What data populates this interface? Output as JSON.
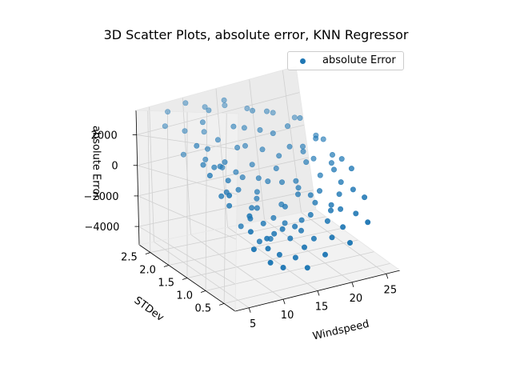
{
  "chart_data": {
    "type": "scatter",
    "title": "3D Scatter Plots, absolute error, KNN Regressor",
    "xlabel": "Windspeed",
    "ylabel": "STDev",
    "zlabel": "absolute Error",
    "xticks": [
      "5",
      "10",
      "15",
      "20",
      "25"
    ],
    "yticks": [
      "0.5",
      "1.0",
      "1.5",
      "2.0",
      "2.5"
    ],
    "zticks": [
      "2000",
      "0",
      "−2000",
      "−4000"
    ],
    "xlim": [
      3,
      27
    ],
    "ylim": [
      0.2,
      2.8
    ],
    "zlim": [
      -5200,
      3600
    ],
    "grid": true,
    "legend_position": "top-right",
    "color": "#1f77b4",
    "series": [
      {
        "name": "absolute Error",
        "points": [
          [
            5.2,
            1.3,
            180
          ],
          [
            5.8,
            0.9,
            -620
          ],
          [
            6.1,
            1.8,
            1450
          ],
          [
            6.4,
            2.2,
            720
          ],
          [
            6.9,
            1.1,
            -1350
          ],
          [
            7.3,
            0.6,
            -2250
          ],
          [
            7.5,
            1.6,
            260
          ],
          [
            7.8,
            2.4,
            1890
          ],
          [
            8.2,
            0.8,
            -1720
          ],
          [
            8.4,
            1.4,
            -380
          ],
          [
            8.8,
            2.0,
            940
          ],
          [
            9.1,
            1.2,
            -2650
          ],
          [
            9.3,
            0.5,
            -3100
          ],
          [
            9.6,
            1.7,
            320
          ],
          [
            9.9,
            2.3,
            2250
          ],
          [
            10.2,
            0.7,
            -2870
          ],
          [
            10.4,
            1.5,
            -1100
          ],
          [
            10.7,
            1.0,
            -3350
          ],
          [
            10.9,
            2.1,
            1220
          ],
          [
            11.2,
            1.3,
            -1950
          ],
          [
            11.5,
            0.6,
            -3650
          ],
          [
            11.7,
            1.8,
            -480
          ],
          [
            12.0,
            2.5,
            2680
          ],
          [
            12.3,
            0.9,
            -2980
          ],
          [
            12.5,
            1.4,
            -2150
          ],
          [
            12.8,
            1.1,
            -3480
          ],
          [
            13.1,
            2.0,
            640
          ],
          [
            13.3,
            0.5,
            -3820
          ],
          [
            13.6,
            1.6,
            -1560
          ],
          [
            13.8,
            2.2,
            1680
          ],
          [
            14.1,
            0.8,
            -3250
          ],
          [
            14.3,
            1.3,
            -2720
          ],
          [
            14.6,
            1.9,
            -380
          ],
          [
            14.9,
            2.6,
            2950
          ],
          [
            15.1,
            0.6,
            -3560
          ],
          [
            15.4,
            1.2,
            -2980
          ],
          [
            15.7,
            1.7,
            -1240
          ],
          [
            15.9,
            2.3,
            1340
          ],
          [
            16.2,
            0.9,
            -3120
          ],
          [
            16.5,
            1.5,
            -2380
          ],
          [
            16.7,
            2.0,
            220
          ],
          [
            17.0,
            0.7,
            -3380
          ],
          [
            17.3,
            1.1,
            -2870
          ],
          [
            17.5,
            1.8,
            -760
          ],
          [
            17.8,
            2.4,
            2120
          ],
          [
            18.1,
            1.0,
            -2560
          ],
          [
            18.4,
            1.4,
            -1890
          ],
          [
            18.6,
            0.5,
            -3240
          ],
          [
            18.9,
            2.1,
            880
          ],
          [
            19.2,
            1.6,
            -1420
          ],
          [
            19.5,
            0.8,
            -2790
          ],
          [
            19.8,
            1.2,
            -2250
          ],
          [
            20.1,
            1.9,
            160
          ],
          [
            20.4,
            2.5,
            1760
          ],
          [
            20.7,
            0.6,
            -2980
          ],
          [
            21.0,
            1.3,
            -1820
          ],
          [
            21.3,
            1.7,
            -640
          ],
          [
            21.6,
            2.2,
            980
          ],
          [
            21.9,
            0.9,
            -2460
          ],
          [
            22.2,
            1.5,
            -1260
          ],
          [
            22.5,
            2.0,
            -120
          ],
          [
            22.8,
            1.1,
            -1940
          ],
          [
            23.1,
            0.7,
            -2580
          ],
          [
            23.4,
            1.8,
            420
          ],
          [
            23.7,
            1.4,
            -980
          ],
          [
            24.0,
            2.3,
            1150
          ],
          [
            24.3,
            1.0,
            -1720
          ],
          [
            24.6,
            1.6,
            -420
          ],
          [
            24.9,
            0.8,
            -1980
          ],
          [
            25.2,
            1.2,
            -860
          ],
          [
            5.5,
            2.5,
            2380
          ],
          [
            6.7,
            0.4,
            -2860
          ],
          [
            7.1,
            2.7,
            3050
          ],
          [
            8.6,
            0.3,
            -3520
          ],
          [
            9.8,
            2.7,
            3300
          ],
          [
            11.0,
            0.4,
            -4020
          ],
          [
            12.6,
            2.7,
            2740
          ],
          [
            14.0,
            0.3,
            -4150
          ],
          [
            15.5,
            2.7,
            2520
          ],
          [
            17.1,
            0.4,
            -3860
          ],
          [
            18.7,
            2.7,
            1980
          ],
          [
            20.2,
            0.3,
            -3420
          ],
          [
            21.8,
            2.6,
            1460
          ],
          [
            23.3,
            0.4,
            -2740
          ],
          [
            24.8,
            2.6,
            860
          ],
          [
            6.3,
            1.2,
            -900
          ],
          [
            7.9,
            1.9,
            480
          ],
          [
            9.4,
            1.0,
            -2100
          ],
          [
            10.6,
            2.4,
            1560
          ],
          [
            12.1,
            1.7,
            -720
          ],
          [
            13.5,
            0.9,
            -2840
          ],
          [
            14.8,
            2.1,
            520
          ],
          [
            16.0,
            1.3,
            -2260
          ],
          [
            17.6,
            2.2,
            1120
          ],
          [
            19.0,
            1.5,
            -1680
          ],
          [
            20.5,
            0.9,
            -2420
          ],
          [
            22.0,
            1.9,
            -280
          ],
          [
            23.6,
            1.2,
            -1460
          ],
          [
            24.5,
            2.0,
            340
          ],
          [
            25.4,
            1.5,
            -620
          ],
          [
            5.9,
            1.6,
            520
          ],
          [
            7.6,
            1.3,
            -860
          ],
          [
            8.9,
            1.7,
            140
          ],
          [
            10.3,
            1.9,
            -180
          ],
          [
            11.8,
            1.1,
            -2620
          ],
          [
            13.0,
            1.5,
            -1780
          ],
          [
            14.4,
            1.7,
            -960
          ],
          [
            15.8,
            1.0,
            -2980
          ],
          [
            17.2,
            1.6,
            -1320
          ],
          [
            18.5,
            1.9,
            -220
          ],
          [
            19.7,
            1.3,
            -1940
          ],
          [
            21.1,
            1.0,
            -2280
          ],
          [
            22.4,
            1.7,
            -540
          ],
          [
            23.9,
            1.5,
            -720
          ],
          [
            25.0,
            1.9,
            160
          ]
        ]
      }
    ]
  }
}
